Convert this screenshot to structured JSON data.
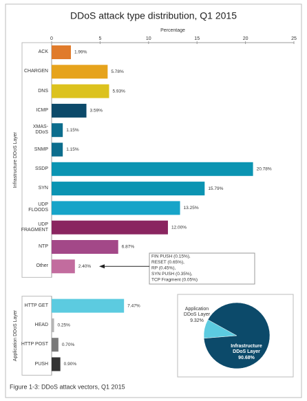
{
  "chart_data": [
    {
      "type": "bar",
      "orientation": "horizontal",
      "title": "DDoS attack type distribution, Q1 2015",
      "x_label": "Percentage",
      "caption": "Figure 1-3: DDoS attack vectors, Q1 2015",
      "groups": [
        {
          "name": "Infrastructure DDoS Layer",
          "count": 12
        },
        {
          "name": "Application DDoS Layer",
          "count": 4
        }
      ],
      "categories": [
        "ACK",
        "CHARGEN",
        "DNS",
        "ICMP",
        "XMAS-DDoS",
        "SNMP",
        "SSDP",
        "SYN",
        "UDP FLOODS",
        "UDP FRAGMENT",
        "NTP",
        "Other",
        "HTTP GET",
        "HEAD",
        "HTTP POST",
        "PUSH"
      ],
      "values": [
        1.99,
        5.78,
        5.93,
        3.59,
        1.15,
        1.15,
        20.78,
        15.79,
        13.25,
        12.0,
        6.87,
        2.4,
        7.47,
        0.25,
        0.7,
        0.9
      ],
      "value_labels": [
        "1.99%",
        "5.78%",
        "5.93%",
        "3.59%",
        "1.15%",
        "1.15%",
        "20.78%",
        "15.79%",
        "13.25%",
        "12.00%",
        "6.87%",
        "2.40%",
        "7.47%",
        "0.25%",
        "0.70%",
        "0.90%"
      ],
      "colors": [
        "#e07b2b",
        "#e6a31c",
        "#dcc21e",
        "#0c4a6a",
        "#0c6d8d",
        "#0c6d8d",
        "#0b94b2",
        "#0b94b2",
        "#17a4c8",
        "#8a2560",
        "#a34888",
        "#c26c9e",
        "#5ccbe0",
        "#b5b5b5",
        "#7a7a7a",
        "#333333"
      ],
      "xlim": [
        0,
        25
      ],
      "xticks": [
        0,
        5,
        10,
        15,
        20,
        25
      ],
      "annotation": {
        "lines": [
          "FIN PUSH (0.15%),",
          "RESET (0.65%),",
          "RP (0.45%),",
          "SYN PUSH (0.35%),",
          "TCP Fragment (0.05%)"
        ],
        "target": 11
      }
    },
    {
      "type": "pie",
      "categories": [
        "Application DDoS Layer",
        "Infrastructure DDoS Layer"
      ],
      "values": [
        9.32,
        90.68
      ],
      "value_labels": [
        "9.32%",
        "90.68%"
      ],
      "colors": [
        "#5ccbe0",
        "#0c4a6a"
      ]
    }
  ]
}
